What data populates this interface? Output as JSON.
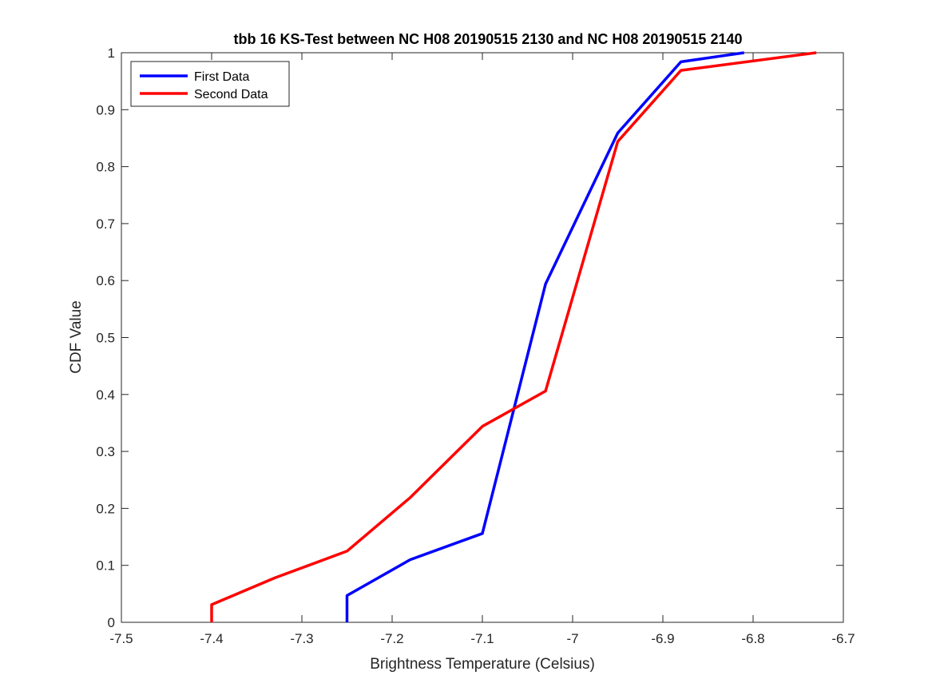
{
  "chart_data": {
    "type": "line",
    "title": "tbb 16 KS-Test between NC H08 20190515 2130 and NC H08 20190515 2140",
    "xlabel": "Brightness Temperature (Celsius)",
    "ylabel": "CDF Value",
    "xlim": [
      -7.5,
      -6.7
    ],
    "ylim": [
      0,
      1
    ],
    "xticks": [
      -7.5,
      -7.4,
      -7.3,
      -7.2,
      -7.1,
      -7.0,
      -6.9,
      -6.8,
      -6.7
    ],
    "xtick_labels": [
      "-7.5",
      "-7.4",
      "-7.3",
      "-7.2",
      "-7.1",
      "-7",
      "-6.9",
      "-6.8",
      "-6.7"
    ],
    "yticks": [
      0,
      0.1,
      0.2,
      0.3,
      0.4,
      0.5,
      0.6,
      0.7,
      0.8,
      0.9,
      1
    ],
    "ytick_labels": [
      "0",
      "0.1",
      "0.2",
      "0.3",
      "0.4",
      "0.5",
      "0.6",
      "0.7",
      "0.8",
      "0.9",
      "1"
    ],
    "grid": false,
    "legend_position": "top-left",
    "series": [
      {
        "name": "First Data",
        "color": "#0000ff",
        "x": [
          -7.25,
          -7.25,
          -7.18,
          -7.1,
          -7.03,
          -6.95,
          -6.88,
          -6.81
        ],
        "y": [
          0,
          0.047,
          0.11,
          0.156,
          0.594,
          0.859,
          0.984,
          1.0
        ]
      },
      {
        "name": "Second Data",
        "color": "#ff0000",
        "x": [
          -7.4,
          -7.4,
          -7.33,
          -7.25,
          -7.18,
          -7.1,
          -7.03,
          -6.95,
          -6.88,
          -6.73
        ],
        "y": [
          0,
          0.031,
          0.078,
          0.125,
          0.219,
          0.344,
          0.406,
          0.844,
          0.969,
          1.0
        ]
      }
    ]
  }
}
